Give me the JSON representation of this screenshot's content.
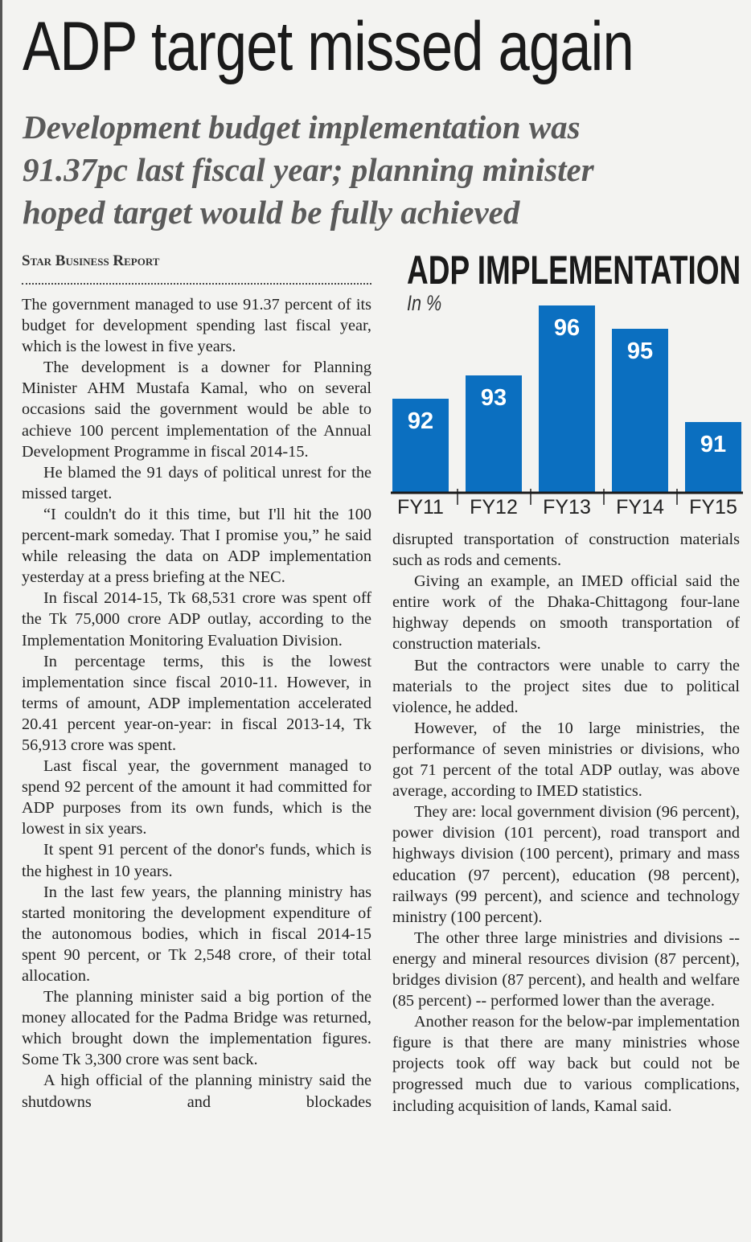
{
  "headline": "ADP target missed again",
  "deck": [
    "Development budget implementation was",
    "91.37pc last fiscal year; planning minister",
    "hoped target would be fully achieved"
  ],
  "byline": "Star Business Report",
  "left_column": [
    "The government managed to use 91.37 percent of its budget for development spending last fiscal year, which is the lowest in five years.",
    "The development is a downer for Planning Minister AHM Mustafa Kamal, who on several occasions said the government would be able to achieve 100 percent implementa­tion of the Annual Development Programme in fiscal 2014-15.",
    "He blamed the 91 days of political unrest for the missed target.",
    "“I couldn't do it this time, but I'll hit the 100 percent-mark someday. That I promise you,” he said while releasing the data on ADP implementation yesterday at a press briefing at the NEC.",
    "In fiscal 2014-15, Tk 68,531 crore was spent off the Tk 75,000 crore ADP outlay, according to the Implementation Monitoring Evaluation Division.",
    "In percentage terms, this is the lowest implementation since fiscal 2010-11. However, in terms of amount, ADP implementation accelerated 20.41 percent year-on-year: in fiscal 2013-14, Tk 56,913 crore was spent.",
    "Last fiscal year, the government managed to spend 92 percent of the amount it had committed for ADP purposes from its own funds, which is the lowest in six years.",
    "It spent 91 percent of the donor's funds, which is the highest in 10 years.",
    "In the last few years, the planning minis­try has started monitoring the development expenditure of the autonomous bodies, which in fiscal 2014-15 spent 90 percent, or Tk 2,548 crore, of their total allocation.",
    "The planning minister said a big portion of the money allocated for the Padma Bridge was returned, which brought down the implementation figures. Some Tk 3,300 crore was sent back.",
    "A high official of the planning ministry said the shutdowns and blockades"
  ],
  "right_column": [
    "disrupted transportation of construction materials such as rods and cements.",
    "Giving an example, an IMED official said the entire work of the Dhaka-Chittagong four-lane highway depends on smooth transportation of construction materials.",
    "But the contractors were unable to carry the materials to the project sites due to political violence, he added.",
    "However, of the 10 large ministries, the performance of seven ministries or divisions, who got 71 percent of the total ADP outlay, was above average, according to IMED statistics.",
    "They are: local government division (96 percent), power division (101 percent), road transport and highways division (100 percent), primary and mass education (97 percent), education (98 percent), railways (99 percent), and science and technology ministry (100 percent).",
    "The other three large ministries and divisions -- energy and mineral resources division (87 percent), bridges division (87 percent), and health and welfare (85 percent) -- performed lower than the average.",
    "Another reason for the below-par imple­mentation figure is that there are many ministries whose projects took off way back but could not be progressed much due to various complications, including acquisi­tion of lands, Kamal said."
  ],
  "chart_data": {
    "type": "bar",
    "title": "ADP IMPLEMENTATION",
    "subtitle": "In %",
    "categories": [
      "FY11",
      "FY12",
      "FY13",
      "FY14",
      "FY15"
    ],
    "values": [
      92,
      93,
      96,
      95,
      91
    ],
    "data_labels": [
      "92",
      "93",
      "96",
      "95",
      "91"
    ],
    "xlabel": "",
    "ylabel": "",
    "ylim": [
      88,
      97
    ],
    "grid": false,
    "bar_color": "#0b6fc0"
  }
}
